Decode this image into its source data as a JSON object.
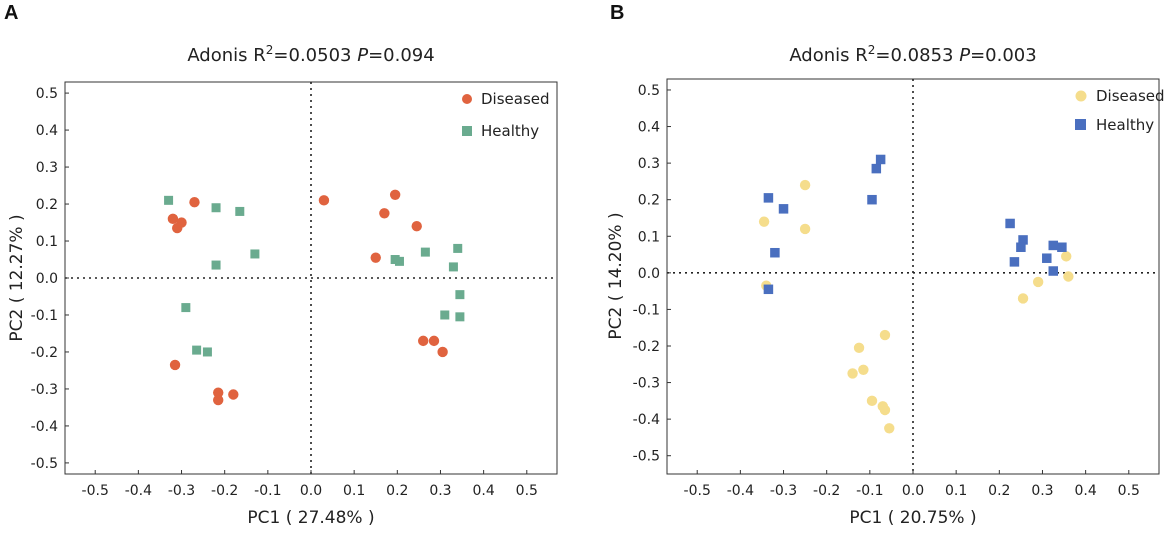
{
  "panels": [
    {
      "letter": "A",
      "title": {
        "prefix": "Adonis R",
        "sup": "2",
        "mid": "=0.0503 ",
        "p": "P",
        "suffix": "=0.094"
      },
      "xlabel": "PC1 ( 27.48% )",
      "ylabel": "PC2 ( 12.27% )",
      "xlim": [
        -0.57,
        0.57
      ],
      "ylim": [
        -0.53,
        0.53
      ],
      "xticks": [
        -0.5,
        -0.4,
        -0.3,
        -0.2,
        -0.1,
        0.0,
        0.1,
        0.2,
        0.3,
        0.4,
        0.5
      ],
      "yticks": [
        -0.5,
        -0.4,
        -0.3,
        -0.2,
        -0.1,
        0.0,
        0.1,
        0.2,
        0.3,
        0.4,
        0.5
      ],
      "xtick_labels": [
        "-0.5",
        "-0.4",
        "-0.3",
        "-0.2",
        "-0.1",
        "0.0",
        "0.1",
        "0.2",
        "0.3",
        "0.4",
        "0.5"
      ],
      "ytick_labels": [
        "-0.5",
        "-0.4",
        "-0.3",
        "-0.2",
        "-0.1",
        "0.0",
        "0.1",
        "0.2",
        "0.3",
        "0.4",
        "0.5"
      ],
      "legend": [
        {
          "label": "Diseased",
          "shape": "circle",
          "color": "#e0633f"
        },
        {
          "label": "Healthy",
          "shape": "square",
          "color": "#6aab8f"
        }
      ],
      "chart_data": {
        "type": "scatter",
        "series": [
          {
            "name": "Diseased",
            "color": "#e0633f",
            "shape": "circle",
            "points": [
              [
                -0.32,
                0.16
              ],
              [
                -0.31,
                0.135
              ],
              [
                -0.3,
                0.15
              ],
              [
                -0.27,
                0.205
              ],
              [
                -0.315,
                -0.235
              ],
              [
                -0.215,
                -0.31
              ],
              [
                -0.215,
                -0.33
              ],
              [
                -0.18,
                -0.315
              ],
              [
                0.03,
                0.21
              ],
              [
                0.15,
                0.055
              ],
              [
                0.17,
                0.175
              ],
              [
                0.195,
                0.225
              ],
              [
                0.245,
                0.14
              ],
              [
                0.26,
                -0.17
              ],
              [
                0.285,
                -0.17
              ],
              [
                0.305,
                -0.2
              ]
            ]
          },
          {
            "name": "Healthy",
            "color": "#6aab8f",
            "shape": "square",
            "points": [
              [
                -0.33,
                0.21
              ],
              [
                -0.22,
                0.19
              ],
              [
                -0.165,
                0.18
              ],
              [
                -0.13,
                0.065
              ],
              [
                -0.22,
                0.035
              ],
              [
                -0.29,
                -0.08
              ],
              [
                -0.265,
                -0.195
              ],
              [
                -0.24,
                -0.2
              ],
              [
                0.195,
                0.05
              ],
              [
                0.205,
                0.045
              ],
              [
                0.265,
                0.07
              ],
              [
                0.33,
                0.03
              ],
              [
                0.34,
                0.08
              ],
              [
                0.345,
                -0.045
              ],
              [
                0.31,
                -0.1
              ],
              [
                0.345,
                -0.105
              ]
            ]
          }
        ]
      }
    },
    {
      "letter": "B",
      "title": {
        "prefix": "Adonis R",
        "sup": "2",
        "mid": "=0.0853 ",
        "p": "P",
        "suffix": "=0.003"
      },
      "xlabel": "PC1 ( 20.75% )",
      "ylabel": "PC2 ( 14.20% )",
      "xlim": [
        -0.57,
        0.57
      ],
      "ylim": [
        -0.55,
        0.53
      ],
      "xticks": [
        -0.5,
        -0.4,
        -0.3,
        -0.2,
        -0.1,
        0.0,
        0.1,
        0.2,
        0.3,
        0.4,
        0.5
      ],
      "yticks": [
        -0.5,
        -0.4,
        -0.3,
        -0.2,
        -0.1,
        0.0,
        0.1,
        0.2,
        0.3,
        0.4,
        0.5
      ],
      "xtick_labels": [
        "-0.5",
        "-0.4",
        "-0.3",
        "-0.2",
        "-0.1",
        "0.0",
        "0.1",
        "0.2",
        "0.3",
        "0.4",
        "0.5"
      ],
      "ytick_labels": [
        "-0.5",
        "-0.4",
        "-0.3",
        "-0.2",
        "-0.1",
        "0.0",
        "0.1",
        "0.2",
        "0.3",
        "0.4",
        "0.5"
      ],
      "legend": [
        {
          "label": "Diseased",
          "shape": "circle",
          "color": "#f5dd8c"
        },
        {
          "label": "Healthy",
          "shape": "square",
          "color": "#4a6fbf"
        }
      ],
      "chart_data": {
        "type": "scatter",
        "series": [
          {
            "name": "Diseased",
            "color": "#f5dd8c",
            "shape": "circle",
            "points": [
              [
                -0.345,
                0.14
              ],
              [
                -0.34,
                -0.035
              ],
              [
                -0.25,
                0.24
              ],
              [
                -0.25,
                0.12
              ],
              [
                -0.125,
                -0.205
              ],
              [
                -0.115,
                -0.265
              ],
              [
                -0.14,
                -0.275
              ],
              [
                -0.095,
                -0.35
              ],
              [
                -0.065,
                -0.17
              ],
              [
                -0.07,
                -0.365
              ],
              [
                -0.065,
                -0.375
              ],
              [
                -0.055,
                -0.425
              ],
              [
                0.255,
                -0.07
              ],
              [
                0.29,
                -0.025
              ],
              [
                0.355,
                0.045
              ],
              [
                0.36,
                -0.01
              ]
            ]
          },
          {
            "name": "Healthy",
            "color": "#4a6fbf",
            "shape": "square",
            "points": [
              [
                -0.335,
                0.205
              ],
              [
                -0.3,
                0.175
              ],
              [
                -0.32,
                0.055
              ],
              [
                -0.335,
                -0.045
              ],
              [
                -0.095,
                0.2
              ],
              [
                -0.085,
                0.285
              ],
              [
                -0.075,
                0.31
              ],
              [
                0.225,
                0.135
              ],
              [
                0.255,
                0.09
              ],
              [
                0.25,
                0.07
              ],
              [
                0.235,
                0.03
              ],
              [
                0.31,
                0.04
              ],
              [
                0.325,
                0.075
              ],
              [
                0.345,
                0.07
              ],
              [
                0.325,
                0.005
              ]
            ]
          }
        ]
      }
    }
  ]
}
